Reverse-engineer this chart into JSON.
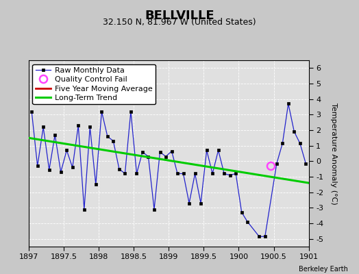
{
  "title": "BELLVILLE",
  "subtitle": "32.150 N, 81.967 W (United States)",
  "ylabel": "Temperature Anomaly (°C)",
  "credit": "Berkeley Earth",
  "xlim": [
    1897,
    1901
  ],
  "ylim": [
    -5.5,
    6.5
  ],
  "yticks": [
    -5,
    -4,
    -3,
    -2,
    -1,
    0,
    1,
    2,
    3,
    4,
    5,
    6
  ],
  "xticks": [
    1897,
    1897.5,
    1898,
    1898.5,
    1899,
    1899.5,
    1900,
    1900.5,
    1901
  ],
  "background_color": "#c8c8c8",
  "plot_bg_color": "#e0e0e0",
  "raw_x": [
    1897.042,
    1897.125,
    1897.208,
    1897.292,
    1897.375,
    1897.458,
    1897.542,
    1897.625,
    1897.708,
    1897.792,
    1897.875,
    1897.958,
    1898.042,
    1898.125,
    1898.208,
    1898.292,
    1898.375,
    1898.458,
    1898.542,
    1898.625,
    1898.708,
    1898.792,
    1898.875,
    1898.958,
    1899.042,
    1899.125,
    1899.208,
    1899.292,
    1899.375,
    1899.458,
    1899.542,
    1899.625,
    1899.708,
    1899.792,
    1899.875,
    1899.958,
    1900.042,
    1900.125,
    1900.292,
    1900.375,
    1900.542,
    1900.625,
    1900.708,
    1900.792,
    1900.875,
    1900.958
  ],
  "raw_y": [
    3.2,
    -0.3,
    2.2,
    -0.55,
    1.7,
    -0.7,
    0.7,
    -0.4,
    2.3,
    -3.1,
    2.2,
    -1.5,
    3.2,
    1.6,
    1.3,
    -0.5,
    -0.8,
    3.2,
    -0.8,
    0.6,
    0.3,
    -3.1,
    0.6,
    0.3,
    0.65,
    -0.8,
    -0.8,
    -2.7,
    -0.8,
    -2.7,
    0.7,
    -0.8,
    0.7,
    -0.8,
    -0.9,
    -0.8,
    -3.3,
    -3.9,
    -4.85,
    -4.85,
    -0.15,
    1.15,
    3.7,
    1.9,
    1.15,
    -0.15
  ],
  "qc_fail_x": [
    1900.458
  ],
  "qc_fail_y": [
    -0.3
  ],
  "trend_x": [
    1897,
    1901
  ],
  "trend_y": [
    1.5,
    -1.4
  ],
  "line_color": "#2222cc",
  "marker_color": "#000000",
  "trend_color": "#00cc00",
  "qc_color": "#ff44ff",
  "moving_avg_color": "#cc0000",
  "grid_color": "#ffffff",
  "legend_fontsize": 8,
  "tick_fontsize": 8,
  "title_fontsize": 13,
  "subtitle_fontsize": 9
}
